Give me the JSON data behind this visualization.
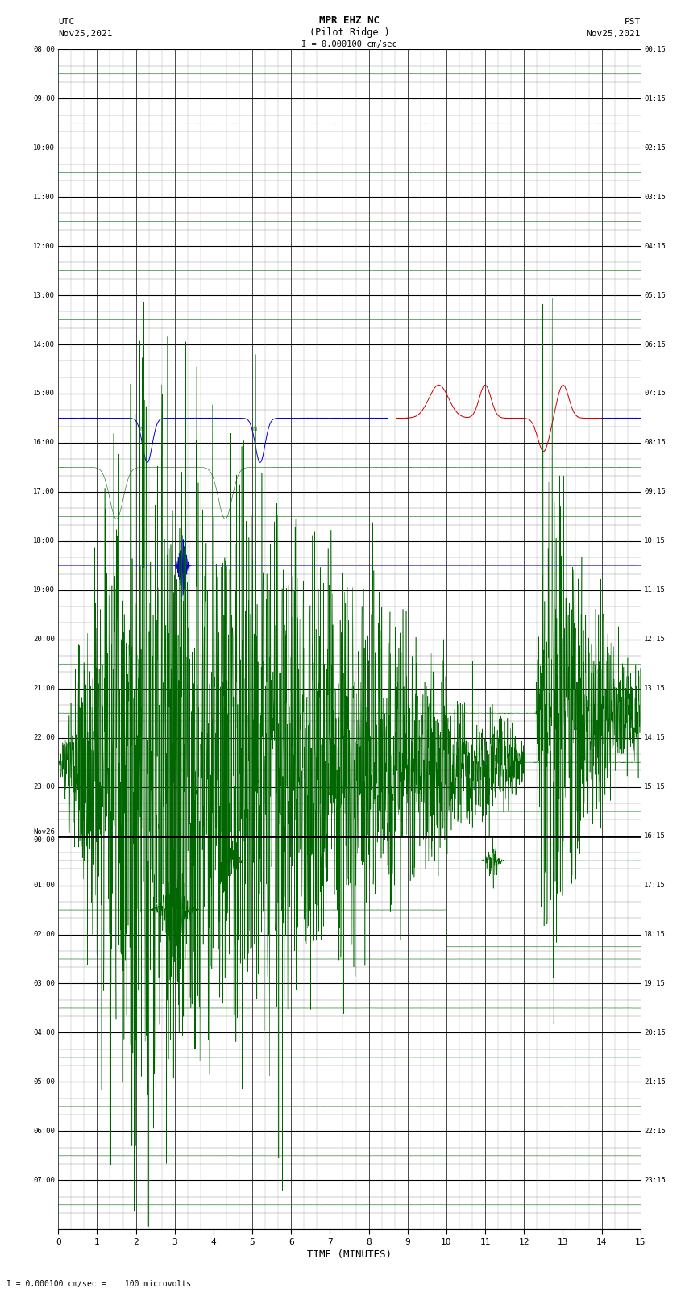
{
  "title_line1": "MPR EHZ NC",
  "title_line2": "(Pilot Ridge )",
  "scale_label": "I = 0.000100 cm/sec",
  "utc_label": "UTC",
  "utc_date": "Nov25,2021",
  "pst_label": "PST",
  "pst_date": "Nov25,2021",
  "bottom_label": "I = 0.000100 cm/sec =    100 microvolts",
  "xlabel": "TIME (MINUTES)",
  "left_times_utc": [
    "08:00",
    "09:00",
    "10:00",
    "11:00",
    "12:00",
    "13:00",
    "14:00",
    "15:00",
    "16:00",
    "17:00",
    "18:00",
    "19:00",
    "20:00",
    "21:00",
    "22:00",
    "23:00",
    "Nov26\n00:00",
    "01:00",
    "02:00",
    "03:00",
    "04:00",
    "05:00",
    "06:00",
    "07:00"
  ],
  "right_times_pst": [
    "00:15",
    "01:15",
    "02:15",
    "03:15",
    "04:15",
    "05:15",
    "06:15",
    "07:15",
    "08:15",
    "09:15",
    "10:15",
    "11:15",
    "12:15",
    "13:15",
    "14:15",
    "15:15",
    "16:15",
    "17:15",
    "18:15",
    "19:15",
    "20:15",
    "21:15",
    "22:15",
    "23:15"
  ],
  "n_rows": 24,
  "x_min": 0,
  "x_max": 15,
  "bg_color": "#ffffff",
  "major_grid_color": "#000000",
  "minor_grid_color": "#888888",
  "trace_green": "#006600",
  "trace_blue": "#0000cc",
  "trace_red": "#cc0000",
  "trace_black": "#000000",
  "fig_width": 8.5,
  "fig_height": 16.13
}
